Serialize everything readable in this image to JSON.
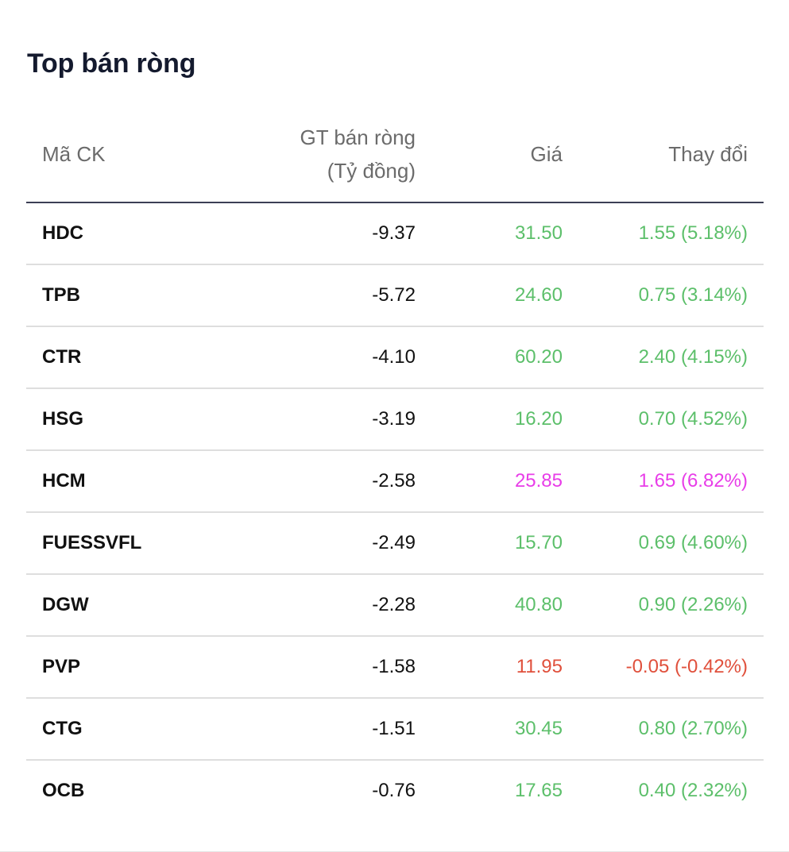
{
  "widget": {
    "title": "Top bán ròng"
  },
  "table": {
    "headers": {
      "code": "Mã CK",
      "value_line1": "GT bán ròng",
      "value_line2": "(Tỷ đồng)",
      "price": "Giá",
      "change": "Thay đổi"
    },
    "rows": [
      {
        "code": "HDC",
        "value": "-9.37",
        "price": "31.50",
        "change": "1.55 (5.18%)",
        "trend": "up"
      },
      {
        "code": "TPB",
        "value": "-5.72",
        "price": "24.60",
        "change": "0.75 (3.14%)",
        "trend": "up"
      },
      {
        "code": "CTR",
        "value": "-4.10",
        "price": "60.20",
        "change": "2.40 (4.15%)",
        "trend": "up"
      },
      {
        "code": "HSG",
        "value": "-3.19",
        "price": "16.20",
        "change": "0.70 (4.52%)",
        "trend": "up"
      },
      {
        "code": "HCM",
        "value": "-2.58",
        "price": "25.85",
        "change": "1.65 (6.82%)",
        "trend": "ceil"
      },
      {
        "code": "FUESSVFL",
        "value": "-2.49",
        "price": "15.70",
        "change": "0.69 (4.60%)",
        "trend": "up"
      },
      {
        "code": "DGW",
        "value": "-2.28",
        "price": "40.80",
        "change": "0.90 (2.26%)",
        "trend": "up"
      },
      {
        "code": "PVP",
        "value": "-1.58",
        "price": "11.95",
        "change": "-0.05 (-0.42%)",
        "trend": "down"
      },
      {
        "code": "CTG",
        "value": "-1.51",
        "price": "30.45",
        "change": "0.80 (2.70%)",
        "trend": "up"
      },
      {
        "code": "OCB",
        "value": "-0.76",
        "price": "17.65",
        "change": "0.40 (2.32%)",
        "trend": "up"
      }
    ]
  },
  "colors": {
    "up": "#5cbf6a",
    "ceil": "#e83de8",
    "down": "#e0503c"
  }
}
